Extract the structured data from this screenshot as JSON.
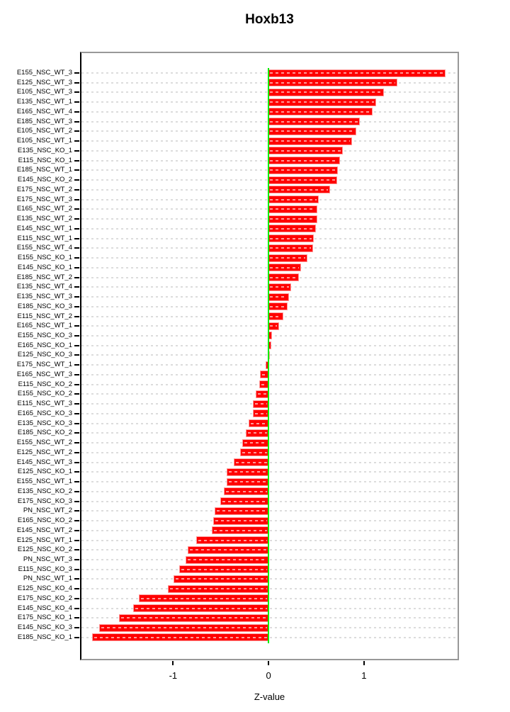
{
  "page": {
    "background": "#ffffff"
  },
  "chart_data": {
    "type": "bar",
    "orientation": "horizontal",
    "title": "Hoxb13",
    "xlabel": "Z-value",
    "x_ticks": [
      -1,
      0,
      1
    ],
    "x_tick_labels": [
      "-1",
      "0",
      "1"
    ],
    "xlim": [
      -1.96,
      1.98
    ],
    "grid": "dotted horizontal line per category",
    "legend": "none",
    "bar_color": "#ff0000",
    "bar_edge_color": "#ff9b9b",
    "zero_line_color": "#00ee00",
    "categories": [
      "E155_NSC_WT_3",
      "E125_NSC_WT_3",
      "E105_NSC_WT_3",
      "E135_NSC_WT_1",
      "E165_NSC_WT_4",
      "E185_NSC_WT_3",
      "E105_NSC_WT_2",
      "E105_NSC_WT_1",
      "E135_NSC_KO_1",
      "E115_NSC_KO_1",
      "E185_NSC_WT_1",
      "E145_NSC_KO_2",
      "E175_NSC_WT_2",
      "E175_NSC_WT_3",
      "E165_NSC_WT_2",
      "E135_NSC_WT_2",
      "E145_NSC_WT_1",
      "E115_NSC_WT_1",
      "E155_NSC_WT_4",
      "E155_NSC_KO_1",
      "E145_NSC_KO_1",
      "E185_NSC_WT_2",
      "E135_NSC_WT_4",
      "E135_NSC_WT_3",
      "E185_NSC_KO_3",
      "E115_NSC_WT_2",
      "E165_NSC_WT_1",
      "E155_NSC_KO_3",
      "E165_NSC_KO_1",
      "E125_NSC_KO_3",
      "E175_NSC_WT_1",
      "E165_NSC_WT_3",
      "E115_NSC_KO_2",
      "E155_NSC_KO_2",
      "E115_NSC_WT_3",
      "E165_NSC_KO_3",
      "E135_NSC_KO_3",
      "E185_NSC_KO_2",
      "E155_NSC_WT_2",
      "E125_NSC_WT_2",
      "E145_NSC_WT_3",
      "E125_NSC_KO_1",
      "E155_NSC_WT_1",
      "E135_NSC_KO_2",
      "E175_NSC_KO_3",
      "PN_NSC_WT_2",
      "E165_NSC_KO_2",
      "E145_NSC_WT_2",
      "E125_NSC_WT_1",
      "E125_NSC_KO_2",
      "PN_NSC_WT_3",
      "E115_NSC_KO_3",
      "PN_NSC_WT_1",
      "E125_NSC_KO_4",
      "E175_NSC_KO_2",
      "E145_NSC_KO_4",
      "E175_NSC_KO_1",
      "E145_NSC_KO_3",
      "E185_NSC_KO_1"
    ],
    "values": [
      1.85,
      1.34,
      1.2,
      1.12,
      1.08,
      0.95,
      0.91,
      0.87,
      0.77,
      0.74,
      0.72,
      0.71,
      0.64,
      0.52,
      0.5,
      0.5,
      0.49,
      0.47,
      0.46,
      0.4,
      0.33,
      0.31,
      0.23,
      0.21,
      0.19,
      0.15,
      0.1,
      0.03,
      0.02,
      0.005,
      -0.02,
      -0.08,
      -0.09,
      -0.13,
      -0.16,
      -0.16,
      -0.2,
      -0.23,
      -0.27,
      -0.29,
      -0.36,
      -0.43,
      -0.43,
      -0.46,
      -0.5,
      -0.56,
      -0.57,
      -0.59,
      -0.75,
      -0.84,
      -0.86,
      -0.93,
      -0.99,
      -1.05,
      -1.35,
      -1.41,
      -1.56,
      -1.77,
      -1.84
    ]
  }
}
